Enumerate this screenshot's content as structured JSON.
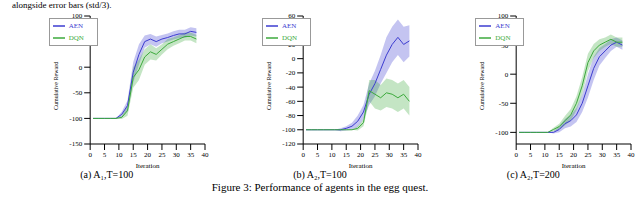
{
  "header_text": "alongside error bars (std/3).",
  "caption": "Figure 3: Performance of agents in the egg quest.",
  "chart_data": [
    {
      "type": "line",
      "subtitle": "(a) A₁,T=100",
      "x_label": "Iteration",
      "y_label": "Cumulative Reward",
      "legend": "upper left",
      "x": [
        1,
        3,
        5,
        7,
        9,
        11,
        13,
        15,
        17,
        19,
        21,
        23,
        25,
        27,
        29,
        31,
        33,
        35,
        37
      ],
      "xlim": [
        0,
        40
      ],
      "xticks": [
        0,
        5,
        10,
        15,
        20,
        25,
        30,
        35,
        40
      ],
      "ylim": [
        -150,
        100
      ],
      "yticks": [
        -150,
        -100,
        -50,
        0,
        50,
        100
      ],
      "series": [
        {
          "name": "AEN",
          "color": "#3c3cd0",
          "values": [
            -100,
            -100,
            -100,
            -100,
            -100,
            -92,
            -75,
            -10,
            25,
            50,
            55,
            50,
            55,
            58,
            62,
            65,
            65,
            70,
            68
          ],
          "error": [
            0,
            0,
            0,
            0,
            0,
            5,
            10,
            20,
            20,
            12,
            10,
            10,
            8,
            8,
            8,
            8,
            8,
            8,
            8
          ]
        },
        {
          "name": "DQN",
          "color": "#3caa3c",
          "values": [
            -100,
            -100,
            -100,
            -100,
            -100,
            -98,
            -85,
            -20,
            -5,
            20,
            30,
            25,
            35,
            45,
            50,
            55,
            60,
            60,
            55
          ],
          "error": [
            0,
            0,
            0,
            0,
            0,
            3,
            10,
            20,
            20,
            15,
            15,
            12,
            10,
            10,
            8,
            8,
            8,
            8,
            8
          ]
        }
      ]
    },
    {
      "type": "line",
      "subtitle": "(b) A₂,T=100",
      "x_label": "Iteration",
      "y_label": "Cumulative Reward",
      "legend": "upper left",
      "x": [
        1,
        3,
        5,
        7,
        9,
        11,
        13,
        15,
        17,
        19,
        21,
        23,
        25,
        27,
        29,
        31,
        33,
        35,
        37
      ],
      "xlim": [
        0,
        40
      ],
      "xticks": [
        0,
        5,
        10,
        15,
        20,
        25,
        30,
        35,
        40
      ],
      "ylim": [
        -120,
        60
      ],
      "yticks": [
        -120,
        -100,
        -80,
        -60,
        -40,
        -20,
        0,
        20,
        40,
        60
      ],
      "series": [
        {
          "name": "AEN",
          "color": "#3c3cd0",
          "values": [
            -100,
            -100,
            -100,
            -100,
            -100,
            -100,
            -100,
            -98,
            -95,
            -88,
            -75,
            -50,
            -35,
            -15,
            5,
            20,
            30,
            20,
            25
          ],
          "error": [
            0,
            0,
            0,
            0,
            0,
            0,
            2,
            3,
            5,
            8,
            10,
            15,
            18,
            20,
            25,
            25,
            25,
            25,
            22
          ]
        },
        {
          "name": "DQN",
          "color": "#3caa3c",
          "values": [
            -100,
            -100,
            -100,
            -100,
            -100,
            -100,
            -100,
            -100,
            -100,
            -98,
            -90,
            -45,
            -50,
            -55,
            -48,
            -50,
            -55,
            -50,
            -60
          ],
          "error": [
            0,
            0,
            0,
            0,
            0,
            0,
            0,
            0,
            0,
            3,
            5,
            15,
            20,
            18,
            20,
            20,
            20,
            20,
            20
          ]
        }
      ]
    },
    {
      "type": "line",
      "subtitle": "(c) A₂,T=200",
      "x_label": "Iteration",
      "y_label": "Cumulative Reward",
      "legend": "upper left",
      "x": [
        1,
        3,
        5,
        7,
        9,
        11,
        13,
        15,
        17,
        19,
        21,
        23,
        25,
        27,
        29,
        31,
        33,
        35,
        37
      ],
      "xlim": [
        0,
        40
      ],
      "xticks": [
        0,
        5,
        10,
        15,
        20,
        25,
        30,
        35,
        40
      ],
      "ylim": [
        -120,
        100
      ],
      "yticks": [
        -100,
        -50,
        0,
        50,
        100
      ],
      "series": [
        {
          "name": "AEN",
          "color": "#3c3cd0",
          "values": [
            -100,
            -100,
            -100,
            -100,
            -100,
            -100,
            -100,
            -95,
            -85,
            -80,
            -70,
            -50,
            -20,
            10,
            30,
            40,
            50,
            55,
            50
          ],
          "error": [
            0,
            0,
            0,
            0,
            0,
            0,
            2,
            5,
            8,
            10,
            12,
            15,
            20,
            20,
            15,
            12,
            10,
            8,
            8
          ]
        },
        {
          "name": "DQN",
          "color": "#3caa3c",
          "values": [
            -100,
            -100,
            -100,
            -100,
            -100,
            -100,
            -95,
            -90,
            -80,
            -70,
            -50,
            -20,
            20,
            40,
            50,
            55,
            60,
            55,
            55
          ],
          "error": [
            0,
            0,
            0,
            0,
            0,
            0,
            3,
            5,
            8,
            10,
            12,
            15,
            15,
            12,
            10,
            8,
            8,
            8,
            8
          ]
        }
      ]
    }
  ]
}
